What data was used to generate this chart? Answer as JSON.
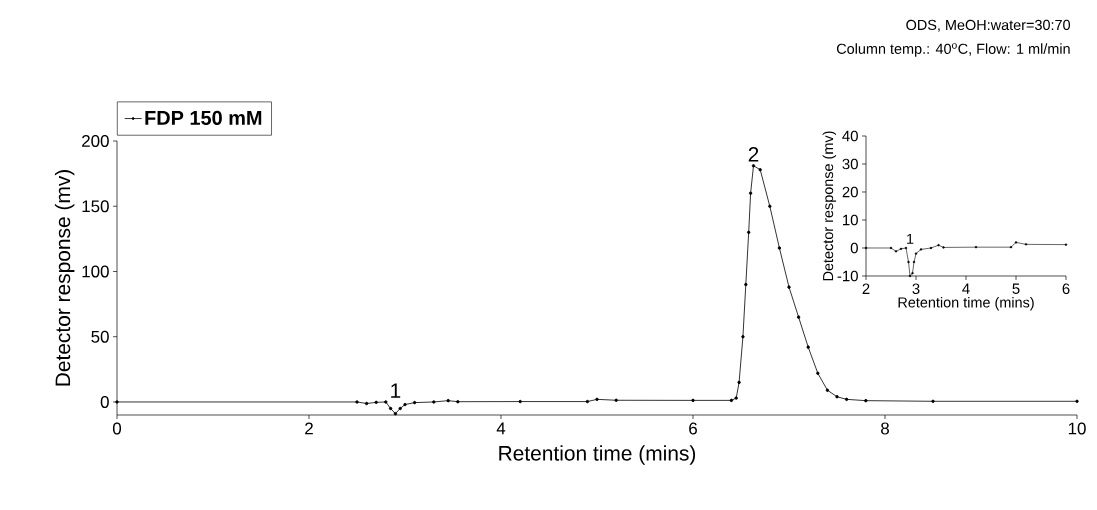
{
  "chart_data": [
    {
      "type": "line",
      "xlabel": "Retention time (mins)",
      "ylabel": "Detector response (mv)",
      "xlim": [
        0,
        10
      ],
      "ylim": [
        -10,
        200
      ],
      "xticks": [
        0,
        2,
        4,
        6,
        8,
        10
      ],
      "yticks": [
        0,
        50,
        100,
        150,
        200
      ],
      "legend": "top left",
      "marker": "circle",
      "line_style": "solid",
      "series": [
        {
          "name": "FDP 150 mM",
          "color": "#000000",
          "x": [
            0,
            2.5,
            2.6,
            2.7,
            2.8,
            2.85,
            2.9,
            2.95,
            3.0,
            3.1,
            3.3,
            3.45,
            3.55,
            4.2,
            4.9,
            5.0,
            5.2,
            6.0,
            6.4,
            6.45,
            6.48,
            6.52,
            6.55,
            6.58,
            6.6,
            6.63,
            6.7,
            6.8,
            6.9,
            7.0,
            7.1,
            7.2,
            7.3,
            7.4,
            7.5,
            7.6,
            7.8,
            8.5,
            10
          ],
          "values": [
            0,
            0,
            -1.2,
            -0.3,
            0,
            -5,
            -9,
            -5,
            -2,
            -0.5,
            0,
            1,
            0.2,
            0.3,
            0.3,
            2,
            1.3,
            1.2,
            1.2,
            3,
            15,
            50,
            90,
            130,
            160,
            181,
            178,
            150,
            118,
            88,
            65,
            42,
            22,
            9,
            4,
            2,
            1,
            0.5,
            0.5
          ]
        }
      ],
      "annotations": [
        {
          "text": "1",
          "x": 2.9,
          "y": -9
        },
        {
          "text": "2",
          "x": 6.63,
          "y": 181
        },
        "ODS, MeOH:water=30:70",
        "Column temp.: 40$^{o}$C, Flow: 1 ml/min"
      ]
    },
    {
      "type": "line",
      "xlabel": "Retention time (mins)",
      "ylabel": "Detector response (mv)",
      "xlim": [
        2,
        6
      ],
      "ylim": [
        -10,
        40
      ],
      "xticks": [
        2,
        3,
        4,
        5,
        6
      ],
      "yticks": [
        -10,
        0,
        10,
        20,
        30,
        40
      ],
      "marker": "circle",
      "line_style": "solid",
      "series": [
        {
          "color": "#000000",
          "x": [
            2,
            2.5,
            2.6,
            2.7,
            2.8,
            2.85,
            2.88,
            2.93,
            2.96,
            3.0,
            3.1,
            3.3,
            3.45,
            3.55,
            4.2,
            4.9,
            5.0,
            5.2,
            6.0
          ],
          "values": [
            0,
            0,
            -1.2,
            -0.3,
            0,
            -5,
            -10,
            -9,
            -5,
            -2,
            -0.5,
            0,
            1,
            0.2,
            0.3,
            0.3,
            2,
            1.3,
            1.2
          ]
        }
      ],
      "annotations": [
        {
          "text": "1",
          "x": 2.88,
          "y": -10
        }
      ]
    }
  ]
}
